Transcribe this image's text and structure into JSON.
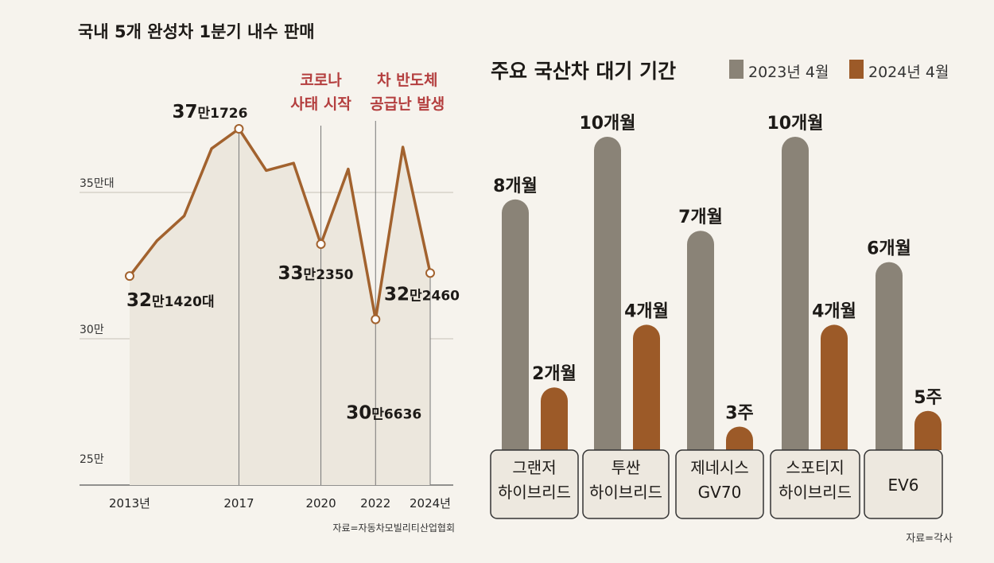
{
  "chart_data": [
    {
      "type": "line",
      "title": "국내 5개 완성차 1분기 내수 판매",
      "x": [
        2013,
        2014,
        2015,
        2016,
        2017,
        2018,
        2019,
        2020,
        2021,
        2022,
        2023,
        2024
      ],
      "x_tick_labels": [
        {
          "x": 2013,
          "label": "2013년"
        },
        {
          "x": 2017,
          "label": "2017"
        },
        {
          "x": 2020,
          "label": "2020"
        },
        {
          "x": 2022,
          "label": "2022"
        },
        {
          "x": 2024,
          "label": "2024년"
        }
      ],
      "series": [
        {
          "values": [
            321420,
            333500,
            342000,
            365000,
            371726,
            357500,
            360000,
            332350,
            358000,
            306636,
            365500,
            322460
          ]
        }
      ],
      "ylim": [
        250000,
        380000
      ],
      "y_ticks": [
        {
          "value": 250000,
          "label": "25만"
        },
        {
          "value": 300000,
          "label": "30만"
        },
        {
          "value": 350000,
          "label": "35만대"
        }
      ],
      "data_labels": [
        {
          "x": 2013,
          "value": 321420,
          "big": "32",
          "man": "만",
          "rest": "1420대"
        },
        {
          "x": 2017,
          "value": 371726,
          "big": "37",
          "man": "만",
          "rest": "1726"
        },
        {
          "x": 2020,
          "value": 332350,
          "big": "33",
          "man": "만",
          "rest": "2350"
        },
        {
          "x": 2022,
          "value": 306636,
          "big": "30",
          "man": "만",
          "rest": "6636"
        },
        {
          "x": 2024,
          "value": 322460,
          "big": "32",
          "man": "만",
          "rest": "2460"
        }
      ],
      "annotations": [
        {
          "x": 2020,
          "lines": [
            "코로나",
            "사태 시작"
          ]
        },
        {
          "x": 2022,
          "lines": [
            "차 반도체",
            "공급난 발생"
          ]
        }
      ],
      "source": "자료=자동차모빌리티산업협회",
      "colors": {
        "line": "#a2622e",
        "fill": "#ece7dd",
        "annotation": "#b43f3f"
      }
    },
    {
      "type": "bar",
      "title": "주요 국산차 대기 기간",
      "categories": [
        [
          "그랜저",
          "하이브리드"
        ],
        [
          "투싼",
          "하이브리드"
        ],
        [
          "제네시스",
          "GV70"
        ],
        [
          "스포티지",
          "하이브리드"
        ],
        [
          "EV6"
        ]
      ],
      "series": [
        {
          "name": "2023년 4월",
          "values": [
            8,
            10,
            7,
            10,
            6
          ],
          "labels": [
            "8개월",
            "10개월",
            "7개월",
            "10개월",
            "6개월"
          ],
          "color": "#8a8377"
        },
        {
          "name": "2024년 4월",
          "values": [
            2,
            4,
            0.75,
            4,
            1.25
          ],
          "labels": [
            "2개월",
            "4개월",
            "3주",
            "4개월",
            "5주"
          ],
          "color": "#9c5a28"
        }
      ],
      "unit": "months",
      "ylim": [
        0,
        10.5
      ],
      "source": "자료=각사"
    }
  ]
}
